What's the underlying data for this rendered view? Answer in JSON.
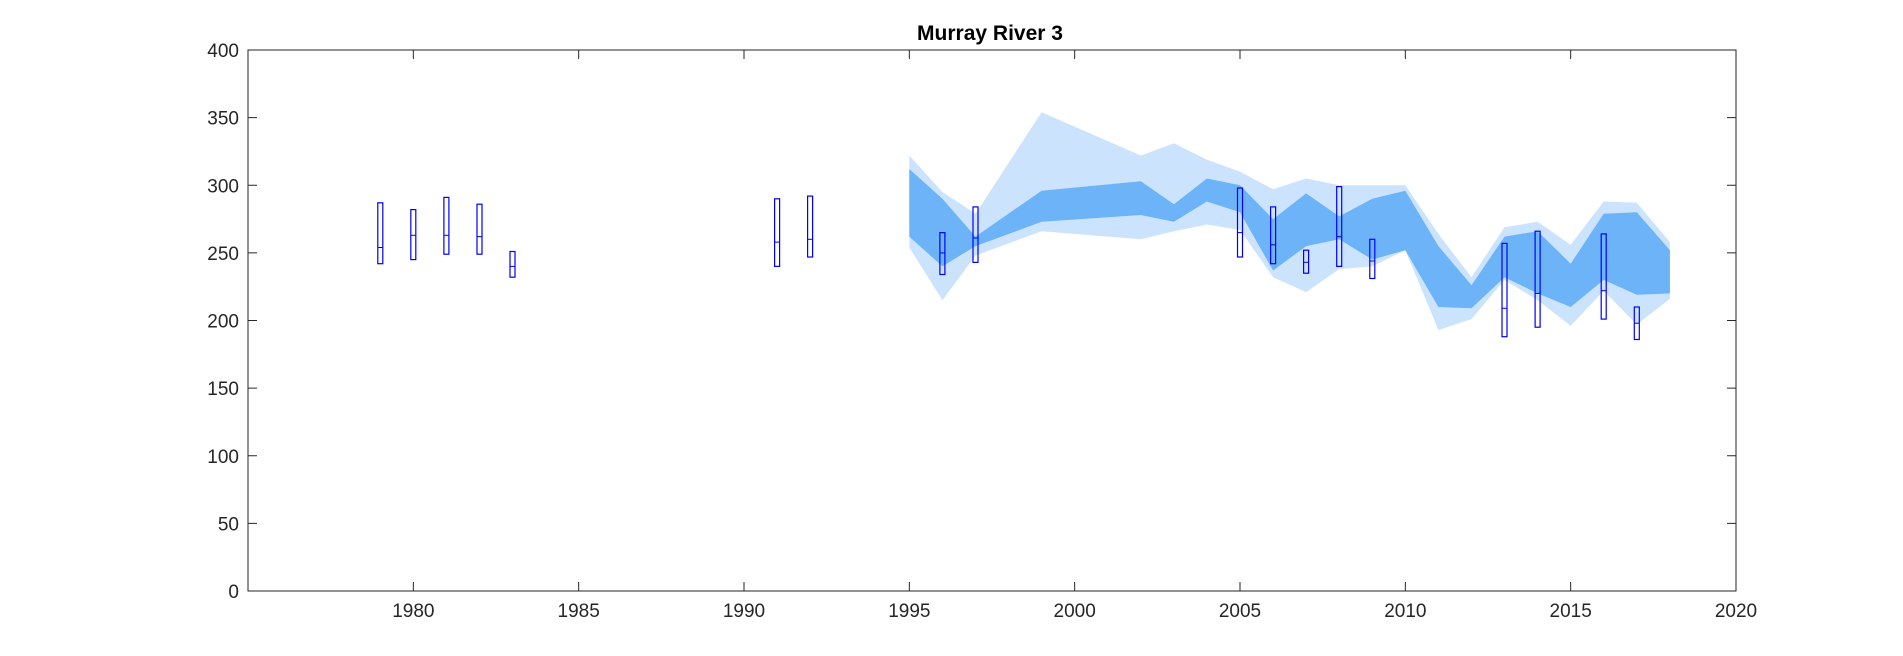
{
  "chart_data": {
    "type": "area",
    "title": "Murray River 3",
    "xlabel": "",
    "ylabel": "",
    "xlim": [
      1975,
      2020
    ],
    "ylim": [
      0,
      400
    ],
    "xticks": [
      1980,
      1985,
      1990,
      1995,
      2000,
      2005,
      2010,
      2015,
      2020
    ],
    "yticks": [
      0,
      50,
      100,
      150,
      200,
      250,
      300,
      350,
      400
    ],
    "grid": false,
    "colors": {
      "outer_band": "#cce3fd",
      "inner_band": "#6db3f7",
      "box": "#0000ff",
      "axis": "#262626"
    },
    "outer_band": {
      "x": [
        1995,
        1996,
        1997,
        1999,
        2002,
        2003,
        2004,
        2005,
        2006,
        2007,
        2008,
        2009,
        2010,
        2011,
        2012,
        2013,
        2014,
        2015,
        2016,
        2017,
        2018
      ],
      "lower": [
        254,
        215,
        248,
        266,
        260,
        266,
        271,
        267,
        232,
        221,
        238,
        240,
        252,
        193,
        201,
        230,
        215,
        196,
        222,
        197,
        216
      ],
      "upper": [
        322,
        295,
        279,
        354,
        322,
        331,
        319,
        310,
        297,
        305,
        300,
        300,
        300,
        264,
        232,
        269,
        273,
        256,
        288,
        287,
        258
      ]
    },
    "inner_band": {
      "x": [
        1995,
        1996,
        1997,
        1999,
        2002,
        2003,
        2004,
        2005,
        2006,
        2007,
        2008,
        2009,
        2010,
        2011,
        2012,
        2013,
        2014,
        2015,
        2016,
        2017,
        2018
      ],
      "lower": [
        262,
        240,
        255,
        273,
        278,
        273,
        288,
        280,
        237,
        255,
        260,
        245,
        252,
        210,
        209,
        232,
        220,
        210,
        230,
        219,
        220
      ],
      "upper": [
        312,
        290,
        262,
        296,
        303,
        286,
        305,
        300,
        275,
        294,
        277,
        290,
        296,
        255,
        226,
        262,
        266,
        242,
        279,
        280,
        252
      ]
    },
    "boxes": [
      {
        "x": 1979,
        "low": 242,
        "median": 254,
        "high": 287
      },
      {
        "x": 1980,
        "low": 245,
        "median": 263,
        "high": 282
      },
      {
        "x": 1981,
        "low": 249,
        "median": 263,
        "high": 291
      },
      {
        "x": 1982,
        "low": 249,
        "median": 262,
        "high": 286
      },
      {
        "x": 1983,
        "low": 232,
        "median": 240,
        "high": 251
      },
      {
        "x": 1991,
        "low": 240,
        "median": 258,
        "high": 290
      },
      {
        "x": 1992,
        "low": 247,
        "median": 260,
        "high": 292
      },
      {
        "x": 1996,
        "low": 234,
        "median": 250,
        "high": 265
      },
      {
        "x": 1997,
        "low": 243,
        "median": 261,
        "high": 284
      },
      {
        "x": 2005,
        "low": 247,
        "median": 265,
        "high": 298
      },
      {
        "x": 2006,
        "low": 242,
        "median": 256,
        "high": 284
      },
      {
        "x": 2007,
        "low": 235,
        "median": 243,
        "high": 252
      },
      {
        "x": 2008,
        "low": 240,
        "median": 262,
        "high": 299
      },
      {
        "x": 2009,
        "low": 231,
        "median": 244,
        "high": 260
      },
      {
        "x": 2010,
        "low": 0,
        "median": 0,
        "high": 0,
        "hidden": true
      },
      {
        "x": 2013,
        "low": 188,
        "median": 209,
        "high": 257
      },
      {
        "x": 2014,
        "low": 195,
        "median": 220,
        "high": 266
      },
      {
        "x": 2016,
        "low": 201,
        "median": 222,
        "high": 264
      },
      {
        "x": 2017,
        "low": 186,
        "median": 198,
        "high": 210
      }
    ]
  }
}
